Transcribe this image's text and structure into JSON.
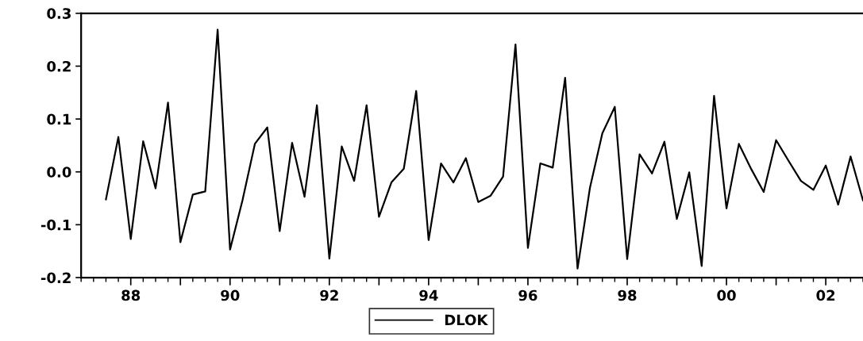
{
  "chart_data": {
    "type": "line",
    "x": [
      1987.5,
      1987.75,
      1988.0,
      1988.25,
      1988.5,
      1988.75,
      1989.0,
      1989.25,
      1989.5,
      1989.75,
      1990.0,
      1990.25,
      1990.5,
      1990.75,
      1991.0,
      1991.25,
      1991.5,
      1991.75,
      1992.0,
      1992.25,
      1992.5,
      1992.75,
      1993.0,
      1993.25,
      1993.5,
      1993.75,
      1994.0,
      1994.25,
      1994.5,
      1994.75,
      1995.0,
      1995.25,
      1995.5,
      1995.75,
      1996.0,
      1996.25,
      1996.5,
      1996.75,
      1997.0,
      1997.25,
      1997.5,
      1997.75,
      1998.0,
      1998.25,
      1998.5,
      1998.75,
      1999.0,
      1999.25,
      1999.5,
      1999.75,
      2000.0,
      2000.25,
      2000.5,
      2000.75,
      2001.0,
      2001.25,
      2001.5,
      2001.75,
      2002.0,
      2002.25,
      2002.5,
      2002.75
    ],
    "series": [
      {
        "name": "DLOK",
        "color": "#000000",
        "values": [
          -0.052,
          0.066,
          -0.127,
          0.058,
          -0.031,
          0.131,
          -0.133,
          -0.043,
          -0.037,
          0.269,
          -0.147,
          -0.054,
          0.053,
          0.084,
          -0.112,
          0.055,
          -0.047,
          0.126,
          -0.164,
          0.048,
          -0.017,
          0.126,
          -0.085,
          -0.02,
          0.006,
          0.153,
          -0.129,
          0.016,
          -0.02,
          0.026,
          -0.057,
          -0.045,
          -0.009,
          0.241,
          -0.144,
          0.016,
          0.008,
          0.178,
          -0.183,
          -0.03,
          0.073,
          0.123,
          -0.165,
          0.033,
          -0.003,
          0.057,
          -0.089,
          -0.001,
          -0.178,
          0.144,
          -0.069,
          0.053,
          0.005,
          -0.038,
          0.06,
          0.021,
          -0.017,
          -0.034,
          0.012,
          -0.062,
          0.029,
          -0.054
        ]
      }
    ],
    "xlim": [
      1987.0,
      2002.75
    ],
    "xticks": [
      {
        "value": 1988,
        "label": "88"
      },
      {
        "value": 1989,
        "label": null
      },
      {
        "value": 1990,
        "label": "90"
      },
      {
        "value": 1991,
        "label": null
      },
      {
        "value": 1992,
        "label": "92"
      },
      {
        "value": 1993,
        "label": null
      },
      {
        "value": 1994,
        "label": "94"
      },
      {
        "value": 1995,
        "label": null
      },
      {
        "value": 1996,
        "label": "96"
      },
      {
        "value": 1997,
        "label": null
      },
      {
        "value": 1998,
        "label": "98"
      },
      {
        "value": 1999,
        "label": null
      },
      {
        "value": 2000,
        "label": "00"
      },
      {
        "value": 2001,
        "label": null
      },
      {
        "value": 2002,
        "label": "02"
      }
    ],
    "ylim": [
      -0.2,
      0.3
    ],
    "yticks": [
      {
        "value": -0.2,
        "label": "-0.2"
      },
      {
        "value": -0.1,
        "label": "-0.1"
      },
      {
        "value": 0.0,
        "label": "0.0"
      },
      {
        "value": 0.1,
        "label": "0.1"
      },
      {
        "value": 0.2,
        "label": "0.2"
      },
      {
        "value": 0.3,
        "label": "0.3"
      }
    ],
    "grid": false,
    "legend": "bottom",
    "marker": "none",
    "line_style": "solid"
  }
}
